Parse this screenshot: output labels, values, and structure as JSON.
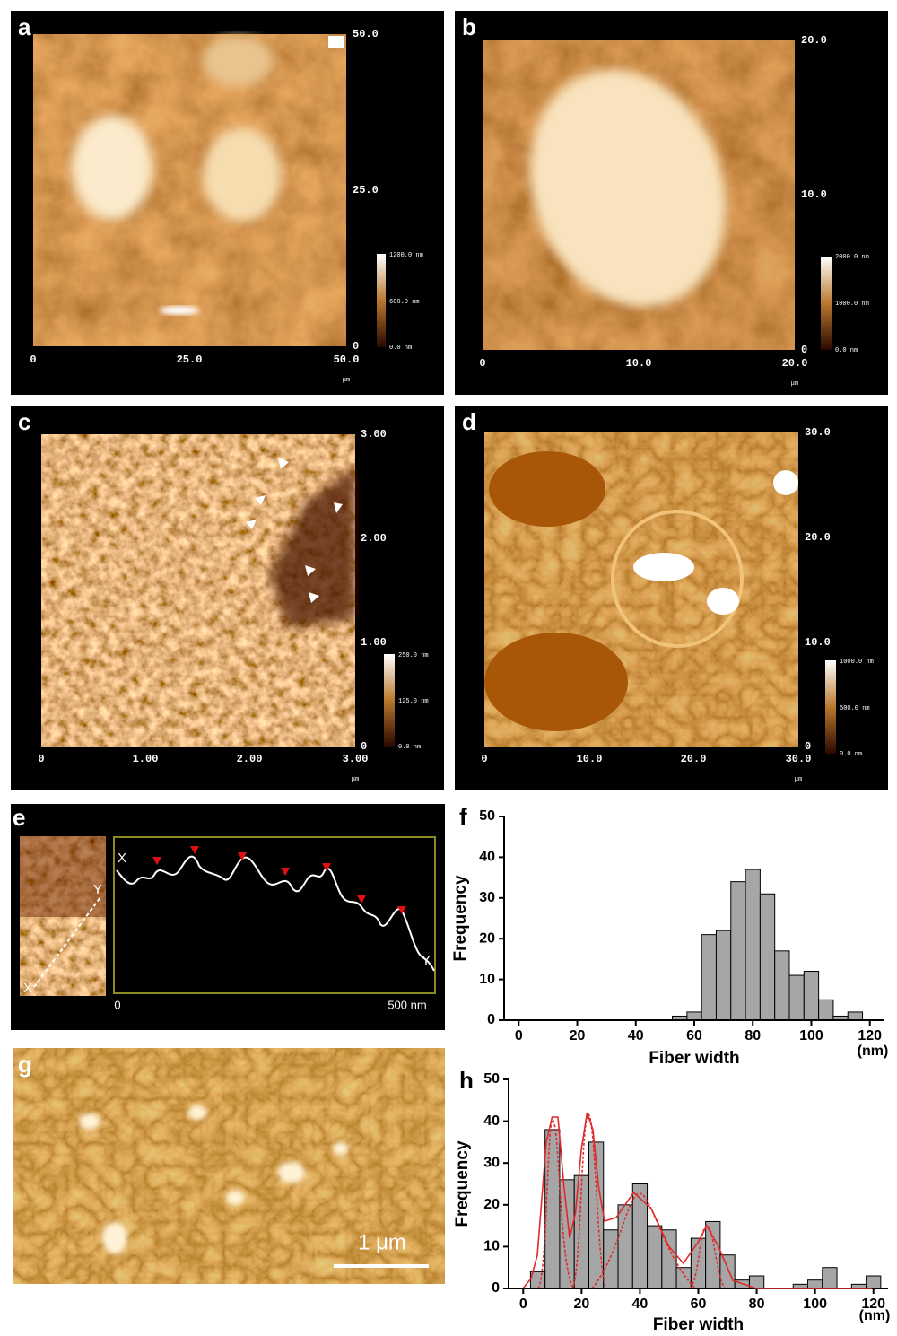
{
  "panels": {
    "a": {
      "label": "a",
      "y_ticks": [
        "50.0",
        "25.0",
        "0"
      ],
      "x_ticks": [
        "0",
        "25.0",
        "50.0"
      ],
      "unit": "μm",
      "colorbar": [
        "1200.0 nm",
        "600.0 nm",
        "0.0 nm"
      ]
    },
    "b": {
      "label": "b",
      "y_ticks": [
        "20.0",
        "10.0",
        "0"
      ],
      "x_ticks": [
        "0",
        "10.0",
        "20.0"
      ],
      "unit": "μm",
      "colorbar": [
        "2000.0 nm",
        "1000.0 nm",
        "0.0 nm"
      ]
    },
    "c": {
      "label": "c",
      "y_ticks": [
        "3.00",
        "2.00",
        "1.00",
        "0"
      ],
      "x_ticks": [
        "0",
        "1.00",
        "2.00",
        "3.00"
      ],
      "unit": "μm",
      "colorbar": [
        "250.0 nm",
        "125.0 nm",
        "0.0 nm"
      ]
    },
    "d": {
      "label": "d",
      "y_ticks": [
        "30.0",
        "20.0",
        "10.0",
        "0"
      ],
      "x_ticks": [
        "0",
        "10.0",
        "20.0",
        "30.0"
      ],
      "unit": "μm",
      "colorbar": [
        "1000.0 nm",
        "500.0 nm",
        "0.0 nm"
      ]
    },
    "e": {
      "label": "e",
      "line_start": "X",
      "line_end": "Y",
      "x_start": "0",
      "x_end": "500 nm"
    },
    "g": {
      "label": "g",
      "scale_bar": "1 μm"
    }
  },
  "chart_data": [
    {
      "type": "histogram",
      "panel_label": "f",
      "y_label": "Frequency",
      "x_label": "Fiber width",
      "x_unit": "(nm)",
      "bins": [
        52.5,
        57.5,
        62.5,
        67.5,
        72.5,
        77.5,
        82.5,
        87.5,
        92.5,
        97.5,
        102.5,
        107.5,
        112.5,
        117.5
      ],
      "counts": [
        1,
        2,
        21,
        22,
        34,
        37,
        31,
        17,
        11,
        12,
        5,
        1,
        2
      ],
      "xlim": [
        -5,
        125
      ],
      "ylim": [
        0,
        50
      ],
      "xticks": [
        0,
        20,
        40,
        60,
        80,
        100,
        120
      ],
      "yticks": [
        0,
        10,
        20,
        30,
        40,
        50
      ],
      "color": "#a6a6a6"
    },
    {
      "type": "histogram",
      "panel_label": "h",
      "y_label": "Frequency",
      "x_label": "Fiber width",
      "x_unit": "(nm)",
      "bins": [
        2.5,
        7.5,
        12.5,
        17.5,
        22.5,
        27.5,
        32.5,
        37.5,
        42.5,
        47.5,
        52.5,
        57.5,
        62.5,
        67.5,
        72.5,
        77.5,
        82.5,
        87.5,
        92.5,
        97.5,
        102.5,
        107.5,
        112.5,
        117.5,
        122.5
      ],
      "counts": [
        4,
        38,
        26,
        27,
        35,
        14,
        20,
        25,
        15,
        14,
        5,
        12,
        16,
        8,
        2,
        3,
        0,
        0,
        1,
        2,
        5,
        0,
        1,
        3
      ],
      "xlim": [
        -5,
        125
      ],
      "ylim": [
        0,
        50
      ],
      "xticks": [
        0,
        20,
        40,
        60,
        80,
        100,
        120
      ],
      "yticks": [
        0,
        10,
        20,
        30,
        40,
        50
      ],
      "color": "#a6a6a6",
      "fit_color": "#e02a2a"
    }
  ]
}
